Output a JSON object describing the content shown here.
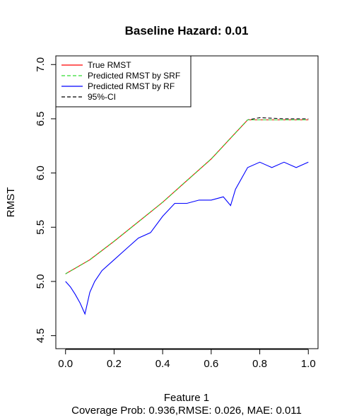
{
  "chart_data": {
    "type": "line",
    "title": "Baseline Hazard: 0.01",
    "xlabel": "Feature 1",
    "subtitle": "Coverage Prob: 0.936,RMSE: 0.026, MAE: 0.011",
    "ylabel": "RMST",
    "xlim": [
      -0.04,
      1.04
    ],
    "ylim": [
      4.38,
      7.08
    ],
    "x_ticks": [
      0.0,
      0.2,
      0.4,
      0.6,
      0.8,
      1.0
    ],
    "x_tick_labels": [
      "0.0",
      "0.2",
      "0.4",
      "0.6",
      "0.8",
      "1.0"
    ],
    "y_ticks": [
      4.5,
      5.0,
      5.5,
      6.0,
      6.5,
      7.0
    ],
    "y_tick_labels": [
      "4.5",
      "5.0",
      "5.5",
      "6.0",
      "6.5",
      "7.0"
    ],
    "grid": false,
    "legend_position": "top-left",
    "series": [
      {
        "name": "True RMST",
        "color": "#ff0000",
        "dash": "solid",
        "x": [
          0.0,
          0.1,
          0.2,
          0.3,
          0.4,
          0.5,
          0.6,
          0.7,
          0.75,
          0.8,
          0.9,
          1.0
        ],
        "values": [
          5.07,
          5.2,
          5.37,
          5.55,
          5.73,
          5.93,
          6.13,
          6.37,
          6.49,
          6.49,
          6.49,
          6.49
        ]
      },
      {
        "name": "Predicted RMST by SRF",
        "color": "#33dd33",
        "dash": "dashed",
        "x": [
          0.0,
          0.1,
          0.2,
          0.3,
          0.4,
          0.5,
          0.6,
          0.7,
          0.75,
          0.8,
          0.9,
          1.0
        ],
        "values": [
          5.07,
          5.2,
          5.37,
          5.55,
          5.73,
          5.93,
          6.13,
          6.37,
          6.49,
          6.49,
          6.49,
          6.49
        ]
      },
      {
        "name": "Predicted RMST by RF",
        "color": "#0000ff",
        "dash": "solid",
        "x": [
          0.0,
          0.02,
          0.04,
          0.06,
          0.08,
          0.1,
          0.12,
          0.15,
          0.2,
          0.25,
          0.3,
          0.35,
          0.4,
          0.45,
          0.5,
          0.55,
          0.6,
          0.65,
          0.68,
          0.7,
          0.75,
          0.8,
          0.85,
          0.9,
          0.95,
          1.0
        ],
        "values": [
          5.0,
          4.95,
          4.88,
          4.8,
          4.7,
          4.9,
          5.0,
          5.1,
          5.2,
          5.3,
          5.4,
          5.45,
          5.6,
          5.72,
          5.72,
          5.75,
          5.75,
          5.78,
          5.7,
          5.85,
          6.05,
          6.1,
          6.05,
          6.1,
          6.05,
          6.1
        ]
      },
      {
        "name": "95%-CI",
        "color": "#000000",
        "dash": "dashed",
        "x": [
          0.0,
          0.1,
          0.2,
          0.3,
          0.4,
          0.5,
          0.6,
          0.7,
          0.75,
          0.8,
          0.9,
          1.0
        ],
        "values": [
          5.07,
          5.2,
          5.37,
          5.55,
          5.73,
          5.93,
          6.13,
          6.37,
          6.49,
          6.51,
          6.5,
          6.5
        ]
      }
    ]
  }
}
